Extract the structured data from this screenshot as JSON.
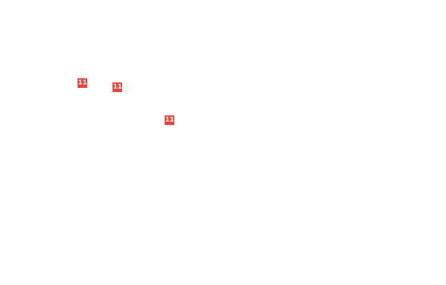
{
  "markers": [
    {
      "label": "11"
    },
    {
      "label": "11"
    },
    {
      "label": "11"
    }
  ],
  "colors": {
    "badge": "#e8463c",
    "badge_text": "#ffe9e6",
    "background": "#ffffff"
  }
}
